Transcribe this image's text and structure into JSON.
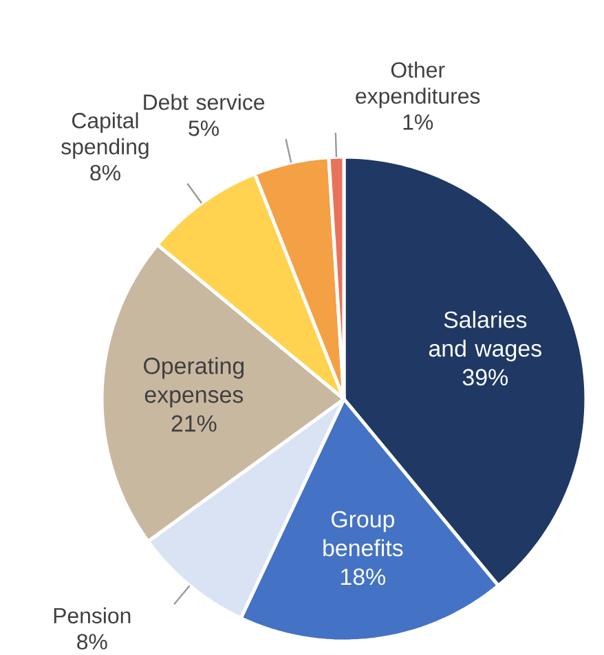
{
  "chart_data": {
    "type": "pie",
    "categories": [
      "Salaries and wages",
      "Group benefits",
      "Pension",
      "Operating expenses",
      "Capital spending",
      "Debt service",
      "Other expenditures"
    ],
    "values": [
      39,
      18,
      8,
      21,
      8,
      5,
      1
    ],
    "value_labels": [
      "39%",
      "18%",
      "8%",
      "21%",
      "8%",
      "5%",
      "1%"
    ],
    "colors": [
      "#1f3864",
      "#4472c4",
      "#dae3f3",
      "#c9b8a0",
      "#ffd34f",
      "#f4a044",
      "#e8735a"
    ]
  }
}
